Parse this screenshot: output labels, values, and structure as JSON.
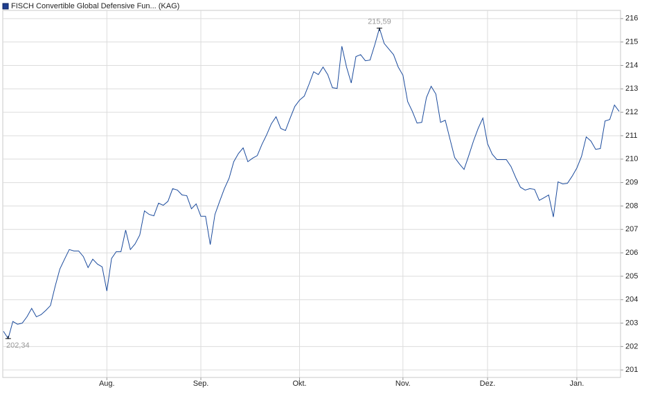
{
  "chart_data": {
    "type": "line",
    "title": "FISCH Convertible Global Defensive Fun... (KAG)",
    "color": "#1a4a9c",
    "values": [
      202.65,
      202.34,
      203.07,
      202.95,
      203.0,
      203.27,
      203.63,
      203.27,
      203.36,
      203.54,
      203.75,
      204.57,
      205.31,
      205.73,
      206.14,
      206.08,
      206.08,
      205.84,
      205.37,
      205.73,
      205.52,
      205.4,
      204.37,
      205.76,
      206.05,
      206.05,
      206.97,
      206.14,
      206.38,
      206.76,
      207.79,
      207.64,
      207.58,
      208.12,
      208.03,
      208.2,
      208.74,
      208.68,
      208.47,
      208.44,
      207.88,
      208.09,
      207.56,
      207.56,
      206.35,
      207.64,
      208.2,
      208.74,
      209.18,
      209.89,
      210.24,
      210.48,
      209.89,
      210.04,
      210.15,
      210.63,
      211.04,
      211.51,
      211.81,
      211.31,
      211.22,
      211.75,
      212.25,
      212.52,
      212.69,
      213.19,
      213.73,
      213.61,
      213.93,
      213.61,
      213.05,
      213.02,
      214.82,
      213.93,
      213.25,
      214.38,
      214.46,
      214.2,
      214.23,
      214.88,
      215.59,
      214.94,
      214.7,
      214.46,
      213.93,
      213.58,
      212.46,
      212.04,
      211.54,
      211.57,
      212.63,
      213.11,
      212.78,
      211.57,
      211.66,
      210.86,
      210.07,
      209.8,
      209.56,
      210.15,
      210.77,
      211.31,
      211.75,
      210.66,
      210.21,
      209.98,
      209.98,
      209.98,
      209.68,
      209.21,
      208.8,
      208.68,
      208.74,
      208.71,
      208.24,
      208.35,
      208.47,
      207.53,
      209.03,
      208.94,
      208.97,
      209.27,
      209.62,
      210.12,
      210.95,
      210.77,
      210.42,
      210.45,
      211.63,
      211.69,
      212.31,
      212.04
    ],
    "value_labels": [
      null,
      "202,34",
      null,
      null,
      null,
      null,
      null,
      null,
      null,
      null,
      null,
      null,
      null,
      null,
      null,
      null,
      null,
      null,
      null,
      null,
      null,
      null,
      null,
      null,
      null,
      null,
      null,
      null,
      null,
      null,
      null,
      null,
      null,
      null,
      null,
      null,
      null,
      null,
      null,
      null,
      null,
      null,
      null,
      null,
      null,
      null,
      null,
      null,
      null,
      null,
      null,
      null,
      null,
      null,
      null,
      null,
      null,
      null,
      null,
      null,
      null,
      null,
      null,
      null,
      null,
      null,
      null,
      null,
      null,
      null,
      null,
      null,
      null,
      null,
      null,
      null,
      null,
      null,
      null,
      null,
      "215,59",
      null,
      null,
      null,
      null,
      null,
      null,
      null,
      null,
      null,
      null,
      null,
      null,
      null,
      null,
      null,
      null,
      null,
      null,
      null,
      null,
      null,
      null,
      null,
      null,
      null,
      null,
      null,
      null,
      null,
      null,
      null,
      null,
      null,
      null,
      null,
      null,
      null,
      null,
      null,
      null,
      null,
      null,
      null,
      null,
      null,
      null,
      null,
      null,
      null,
      null,
      null
    ],
    "xlim": [
      0,
      131
    ],
    "xticks": [
      {
        "value": 22,
        "label": "Aug."
      },
      {
        "value": 42,
        "label": "Sep."
      },
      {
        "value": 63,
        "label": "Okt."
      },
      {
        "value": 85,
        "label": "Nov."
      },
      {
        "value": 103,
        "label": "Dez."
      },
      {
        "value": 122,
        "label": "Jan."
      }
    ],
    "ylim": [
      200.68,
      216.35
    ],
    "yticks": [
      201,
      202,
      203,
      204,
      205,
      206,
      207,
      208,
      209,
      210,
      211,
      212,
      213,
      214,
      215,
      216
    ],
    "grid": true
  }
}
